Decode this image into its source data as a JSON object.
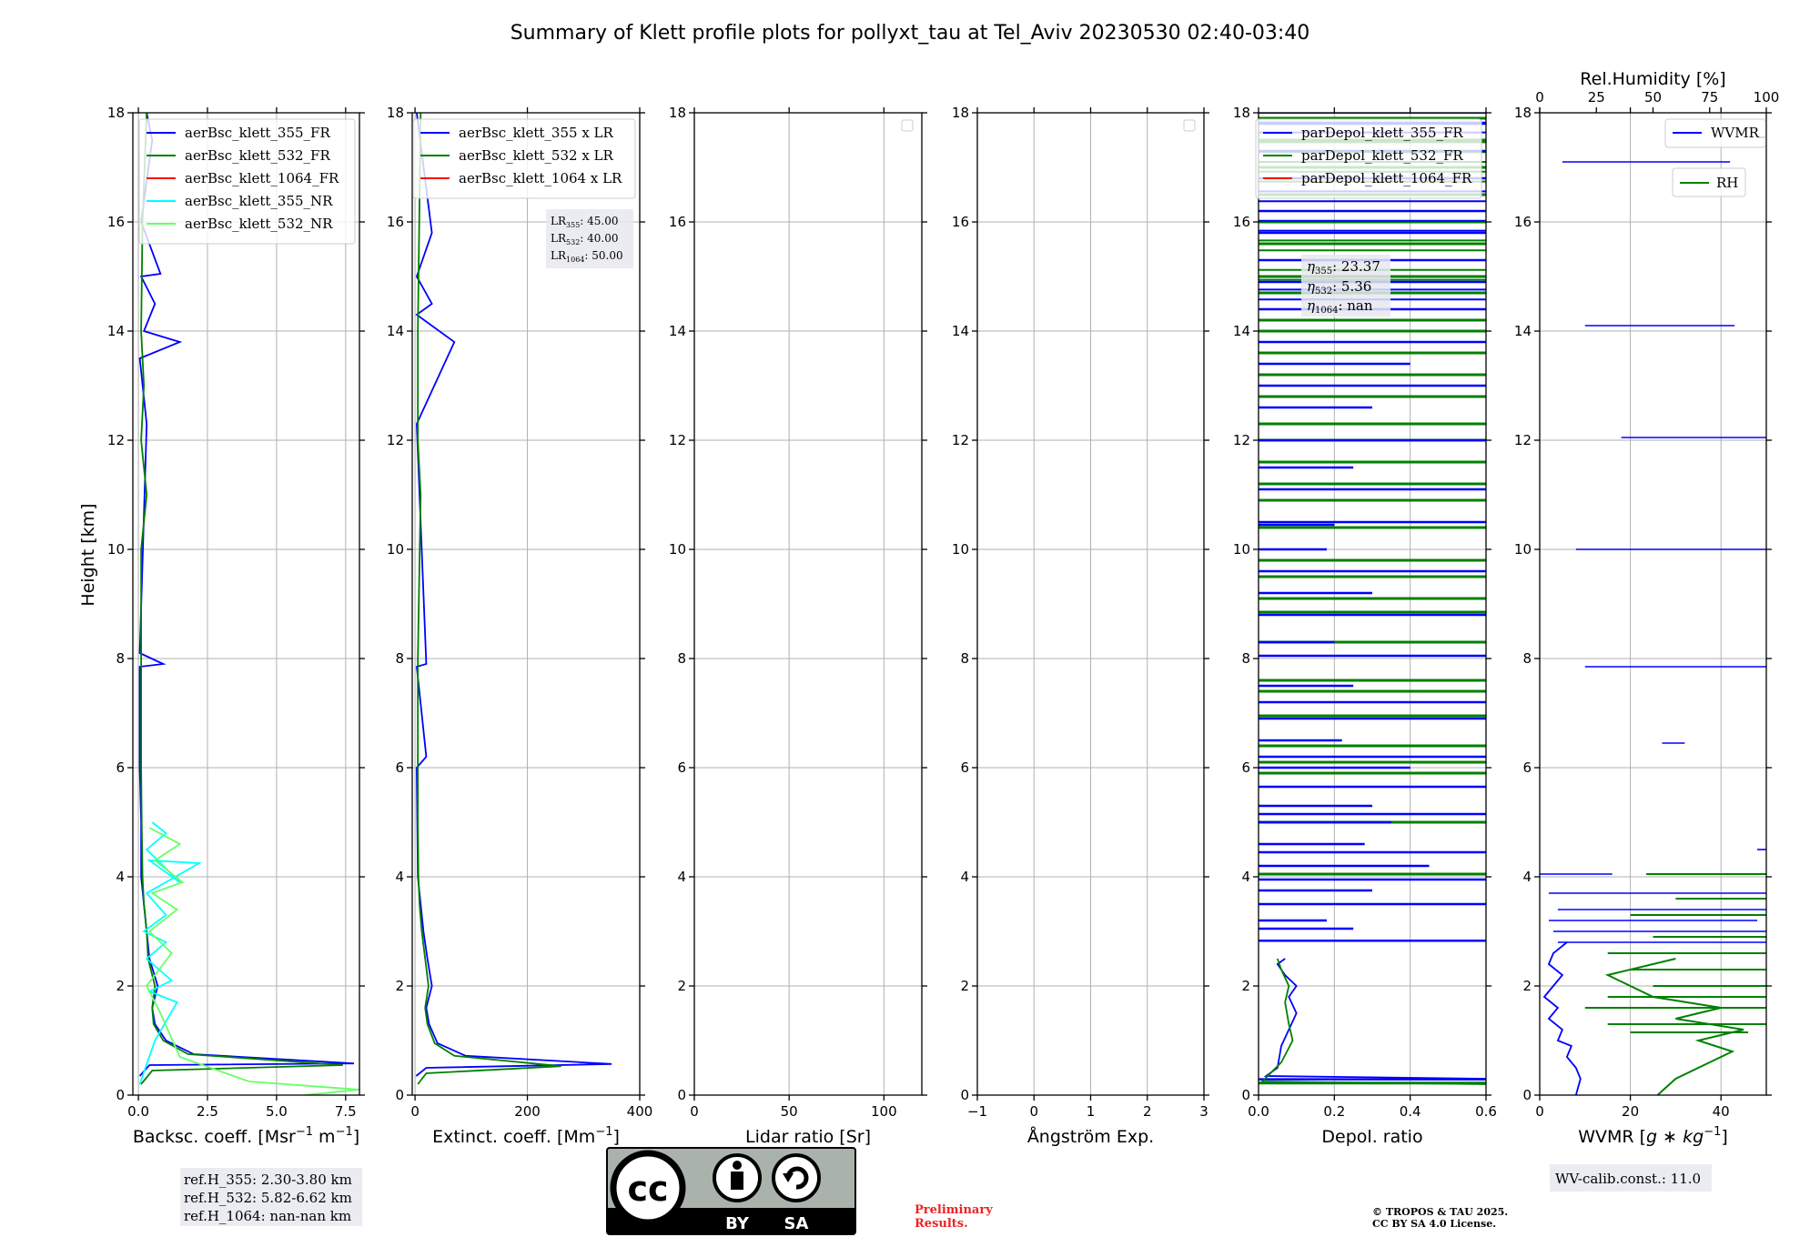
{
  "figure": {
    "title": "Summary of Klett profile plots for pollyxt_tau at Tel_Aviv 20230530 02:40-03:40",
    "y_label": "Height [km]",
    "ref_heights": [
      "ref.H_355: 2.30-3.80 km",
      "ref.H_532: 5.82-6.62 km",
      "ref.H_1064: nan-nan km"
    ],
    "lidar_ratios": {
      "lr355": {
        "name": "LR",
        "sub": "355",
        "value": ": 45.00"
      },
      "lr532": {
        "name": "LR",
        "sub": "532",
        "value": ": 40.00"
      },
      "lr1064": {
        "name": "LR",
        "sub": "1064",
        "value": ": 50.00"
      }
    },
    "eta_values": {
      "e355": {
        "sub": "355",
        "value": ": 23.37"
      },
      "e532": {
        "sub": "532",
        "value": ": 5.36"
      },
      "e1064": {
        "sub": "1064",
        "value": ": nan"
      }
    },
    "wv_calib": "WV-calib.const.: 11.0",
    "license_badge": {
      "by": "BY",
      "sa": "SA"
    },
    "preliminary": [
      "Preliminary",
      "Results."
    ],
    "copyright": [
      "© TROPOS & TAU 2025.",
      "CC BY SA 4.0 License."
    ],
    "colors": {
      "c355": "#0000ff",
      "c532": "#008000",
      "c1064": "#ff0000",
      "c355nr": "#00ffff",
      "c532nr": "#66ff66",
      "grid": "#b0b0b0"
    }
  },
  "chart_data": [
    {
      "type": "line",
      "panel": "backscatter",
      "xlabel": "Backsc. coeff. [Msr$^{-1}$ m$^{-1}$]",
      "xlabel_main": "Backsc. coeff. [Msr",
      "xlabel_sup1": "−1",
      "xlabel_mid": " m",
      "xlabel_sup2": "−1",
      "xlabel_end": "]",
      "xlim": [
        -0.2,
        8.0
      ],
      "ylim": [
        0,
        18
      ],
      "xticks": [
        0,
        2.5,
        5.0,
        7.5
      ],
      "xtick_labels": [
        "0.0",
        "2.5",
        "5.0",
        "7.5"
      ],
      "legend": "top-right",
      "series": [
        {
          "name": "aerBsc_klett_355_FR",
          "color": "#0000ff",
          "legend": true,
          "x": [
            0.05,
            0.4,
            7.8,
            2.0,
            1.0,
            0.6,
            0.5,
            0.7,
            0.4,
            0.3,
            0.2,
            0.1,
            0.1,
            0.05,
            0.05,
            0.05,
            0.9,
            0.05,
            0.3,
            0.05,
            1.5,
            0.2,
            0.6,
            0.1,
            0.8,
            0.1,
            0.5,
            0.3
          ],
          "y": [
            0.35,
            0.55,
            0.58,
            0.75,
            1.0,
            1.3,
            1.6,
            2.0,
            2.5,
            3.0,
            3.5,
            4.0,
            5.0,
            6.0,
            7.0,
            7.85,
            7.9,
            8.1,
            12.3,
            13.5,
            13.8,
            14.0,
            14.5,
            15.0,
            15.05,
            16.0,
            17.5,
            18.0
          ]
        },
        {
          "name": "aerBsc_klett_532_FR",
          "color": "#008000",
          "legend": true,
          "x": [
            0.1,
            0.5,
            7.4,
            1.8,
            0.9,
            0.55,
            0.5,
            0.6,
            0.35,
            0.3,
            0.2,
            0.15,
            0.12,
            0.1,
            0.1,
            0.1,
            0.3,
            0.1,
            0.2,
            0.1,
            0.15,
            0.3
          ],
          "y": [
            0.2,
            0.45,
            0.55,
            0.75,
            1.0,
            1.3,
            1.6,
            2.0,
            2.5,
            3.0,
            3.5,
            4.0,
            5.0,
            6.0,
            8.0,
            10.0,
            11.0,
            12.0,
            13.0,
            14.0,
            16.0,
            18.0
          ]
        },
        {
          "name": "aerBsc_klett_1064_FR",
          "color": "#ff0000",
          "legend": true,
          "x": [],
          "y": []
        },
        {
          "name": "aerBsc_klett_355_NR",
          "color": "#00ffff",
          "legend": true,
          "x": [
            0.05,
            0.6,
            1.4,
            0.4,
            1.2,
            0.3,
            1.0,
            0.2,
            1.0,
            0.3,
            2.2,
            0.4,
            1.5,
            0.3,
            1.0,
            0.5
          ],
          "y": [
            0.2,
            1.0,
            1.7,
            1.9,
            2.1,
            2.5,
            2.8,
            3.0,
            3.3,
            3.7,
            4.25,
            4.3,
            3.9,
            4.5,
            4.8,
            5.0
          ]
        },
        {
          "name": "aerBsc_klett_532_NR",
          "color": "#66ff66",
          "legend": true,
          "x": [
            6.0,
            8.0,
            4.0,
            1.5,
            0.8,
            0.3,
            1.2,
            0.4,
            1.4,
            0.5,
            1.6,
            0.6,
            1.5,
            0.4
          ],
          "y": [
            0.0,
            0.1,
            0.25,
            0.7,
            1.5,
            2.0,
            2.6,
            3.0,
            3.4,
            3.7,
            3.9,
            4.3,
            4.6,
            4.9
          ]
        }
      ]
    },
    {
      "type": "line",
      "panel": "extinction",
      "xlabel": "Extinct. coeff. [Mm$^{-1}$]",
      "xlabel_main": "Extinct. coeff. [Mm",
      "xlabel_sup1": "−1",
      "xlabel_end": "]",
      "xlim": [
        -5,
        400
      ],
      "ylim": [
        0,
        18
      ],
      "xticks": [
        0,
        200,
        400
      ],
      "xtick_labels": [
        "0",
        "200",
        "400"
      ],
      "legend": "top-right",
      "series": [
        {
          "name": "aerBsc_klett_355 x LR",
          "color": "#0000ff",
          "legend": true,
          "x": [
            2,
            20,
            350,
            90,
            40,
            25,
            20,
            30,
            22,
            15,
            10,
            5,
            4,
            3,
            20,
            3,
            20,
            3,
            70,
            3,
            30,
            3,
            30,
            3
          ],
          "y": [
            0.35,
            0.5,
            0.57,
            0.72,
            0.95,
            1.3,
            1.6,
            2.0,
            2.5,
            3.0,
            3.5,
            4.0,
            5.0,
            6.0,
            6.2,
            7.85,
            7.9,
            12.3,
            13.8,
            14.3,
            14.5,
            15.0,
            15.8,
            18.0
          ]
        },
        {
          "name": "aerBsc_klett_532 x LR",
          "color": "#008000",
          "legend": true,
          "x": [
            5,
            20,
            260,
            70,
            35,
            22,
            18,
            24,
            18,
            12,
            8,
            6,
            5,
            5,
            5,
            10,
            5,
            5,
            10
          ],
          "y": [
            0.2,
            0.4,
            0.53,
            0.72,
            0.95,
            1.3,
            1.6,
            2.0,
            2.5,
            3.0,
            3.5,
            4.0,
            5.0,
            6.0,
            8.0,
            11.0,
            12.0,
            14.0,
            18.0
          ]
        },
        {
          "name": "aerBsc_klett_1064 x LR",
          "color": "#ff0000",
          "legend": true,
          "x": [],
          "y": []
        }
      ]
    },
    {
      "type": "line",
      "panel": "lidar_ratio",
      "xlabel": "Lidar ratio [Sr]",
      "xlim": [
        0,
        120
      ],
      "ylim": [
        0,
        18
      ],
      "xticks": [
        0,
        50,
        100
      ],
      "xtick_labels": [
        "0",
        "50",
        "100"
      ],
      "legend": "top-right",
      "series": []
    },
    {
      "type": "line",
      "panel": "angstrom",
      "xlabel": "Ångström Exp.",
      "xlim": [
        -1,
        3
      ],
      "ylim": [
        0,
        18
      ],
      "xticks": [
        -1,
        0,
        1,
        2,
        3
      ],
      "xtick_labels": [
        "−1",
        "0",
        "1",
        "2",
        "3"
      ],
      "legend": "top-right",
      "series": []
    },
    {
      "type": "line",
      "panel": "depolarization",
      "xlabel": "Depol. ratio",
      "xlim": [
        0,
        0.6
      ],
      "ylim": [
        0,
        18
      ],
      "xticks": [
        0.0,
        0.2,
        0.4,
        0.6
      ],
      "xtick_labels": [
        "0.0",
        "0.2",
        "0.4",
        "0.6"
      ],
      "legend": "top-right",
      "series": [
        {
          "name": "parDepol_klett_355_FR",
          "color": "#0000ff",
          "legend": true,
          "x": [
            0.6,
            0.02,
            0.05,
            0.06,
            0.08,
            0.1,
            0.08,
            0.1,
            0.07,
            0.05,
            0.07
          ],
          "y": [
            0.3,
            0.35,
            0.5,
            0.9,
            1.2,
            1.5,
            1.8,
            2.0,
            2.2,
            2.4,
            2.5
          ]
        },
        {
          "name": "parDepol_klett_532_FR",
          "color": "#008000",
          "legend": true,
          "x": [
            0.6,
            0.01,
            0.06,
            0.09,
            0.08,
            0.07,
            0.08,
            0.06,
            0.05
          ],
          "y": [
            0.2,
            0.25,
            0.6,
            1.0,
            1.3,
            1.7,
            2.0,
            2.3,
            2.5
          ]
        },
        {
          "name": "parDepol_klett_1064_FR",
          "color": "#ff0000",
          "legend": true,
          "x": [],
          "y": []
        }
      ],
      "noise_355": [
        [
          0.29,
          0.6
        ],
        [
          2.83,
          0.6
        ],
        [
          3.05,
          0.25
        ],
        [
          3.2,
          0.18
        ],
        [
          3.5,
          0.6
        ],
        [
          3.75,
          0.3
        ],
        [
          3.95,
          0.6
        ],
        [
          4.2,
          0.45
        ],
        [
          4.45,
          0.6
        ],
        [
          4.6,
          0.28
        ],
        [
          5.0,
          0.35
        ],
        [
          5.15,
          0.6
        ],
        [
          5.3,
          0.3
        ],
        [
          5.65,
          0.6
        ],
        [
          6.0,
          0.4
        ],
        [
          6.2,
          0.6
        ],
        [
          6.5,
          0.22
        ],
        [
          6.9,
          0.6
        ],
        [
          7.2,
          0.6
        ],
        [
          7.5,
          0.25
        ],
        [
          8.05,
          0.6
        ],
        [
          8.3,
          0.2
        ],
        [
          8.8,
          0.6
        ],
        [
          9.2,
          0.3
        ],
        [
          9.6,
          0.6
        ],
        [
          10.0,
          0.18
        ],
        [
          10.5,
          0.6
        ],
        [
          10.45,
          0.2
        ],
        [
          11.1,
          0.6
        ],
        [
          11.5,
          0.25
        ],
        [
          12.0,
          0.6
        ],
        [
          12.6,
          0.3
        ],
        [
          13.0,
          0.6
        ],
        [
          13.4,
          0.4
        ],
        [
          13.8,
          0.6
        ],
        [
          14.4,
          0.6
        ],
        [
          14.9,
          0.6
        ],
        [
          15.3,
          0.6
        ],
        [
          15.8,
          0.6
        ],
        [
          16.2,
          0.6
        ],
        [
          16.8,
          0.6
        ],
        [
          17.3,
          0.6
        ],
        [
          17.8,
          0.6
        ]
      ],
      "noise_532": [
        [
          0.22,
          0.6
        ],
        [
          4.05,
          0.6
        ],
        [
          5.0,
          0.6
        ],
        [
          5.9,
          0.6
        ],
        [
          6.1,
          0.6
        ],
        [
          6.4,
          0.6
        ],
        [
          6.95,
          0.6
        ],
        [
          7.4,
          0.6
        ],
        [
          7.6,
          0.6
        ],
        [
          8.3,
          0.6
        ],
        [
          8.85,
          0.6
        ],
        [
          9.1,
          0.6
        ],
        [
          9.5,
          0.6
        ],
        [
          9.8,
          0.6
        ],
        [
          10.4,
          0.6
        ],
        [
          10.9,
          0.6
        ],
        [
          11.2,
          0.6
        ],
        [
          11.6,
          0.6
        ],
        [
          12.0,
          0.6
        ],
        [
          12.3,
          0.6
        ],
        [
          12.8,
          0.6
        ],
        [
          13.2,
          0.6
        ],
        [
          13.6,
          0.6
        ],
        [
          14.0,
          0.6
        ],
        [
          14.2,
          0.6
        ],
        [
          14.7,
          0.6
        ],
        [
          15.0,
          0.6
        ],
        [
          15.6,
          0.6
        ],
        [
          16.0,
          0.6
        ],
        [
          16.5,
          0.6
        ],
        [
          17.0,
          0.6
        ],
        [
          17.5,
          0.6
        ],
        [
          17.9,
          0.6
        ]
      ]
    },
    {
      "type": "line",
      "panel": "water_vapor",
      "xlabel": "WVMR [$g*kg^{-1}$]",
      "xlabel_main": "WVMR [",
      "xlabel_italic": "g",
      "xlabel_star": " ∗ ",
      "xlabel_italic2": "kg",
      "xlabel_sup1": "−1",
      "xlabel_end": "]",
      "xlim": [
        0,
        50
      ],
      "ylim": [
        0,
        18
      ],
      "xticks": [
        0,
        20,
        40
      ],
      "xtick_labels": [
        "0",
        "20",
        "40"
      ],
      "top_xlabel": "Rel.Humidity [%]",
      "top_xlim": [
        0,
        100
      ],
      "top_xticks": [
        0,
        25,
        50,
        75,
        100
      ],
      "top_xtick_labels": [
        "0",
        "25",
        "50",
        "75",
        "100"
      ],
      "legend": "top-right",
      "series": [
        {
          "name": "WVMR",
          "color": "#0000ff",
          "legend": true,
          "x": [
            8,
            9,
            8,
            6,
            7,
            4,
            5,
            2,
            4,
            1,
            3,
            5,
            2,
            3,
            6
          ],
          "y": [
            0.0,
            0.3,
            0.5,
            0.7,
            0.9,
            1.0,
            1.2,
            1.4,
            1.6,
            1.8,
            2.0,
            2.2,
            2.4,
            2.6,
            2.8
          ]
        },
        {
          "name": "RH",
          "color": "#008000",
          "legend": true,
          "x_rh": [
            52,
            60,
            75,
            85,
            70,
            90,
            60,
            80,
            50,
            40,
            30,
            60
          ],
          "y": [
            0.0,
            0.3,
            0.6,
            0.8,
            1.0,
            1.2,
            1.4,
            1.6,
            1.8,
            2.0,
            2.2,
            2.5
          ]
        }
      ],
      "wv_segments": [
        [
          17.1,
          5,
          42
        ],
        [
          14.1,
          10,
          43
        ],
        [
          12.05,
          18,
          50
        ],
        [
          10.0,
          8,
          50
        ],
        [
          7.85,
          10,
          50
        ],
        [
          6.45,
          27,
          32
        ],
        [
          4.5,
          48,
          50
        ],
        [
          4.05,
          0,
          16
        ],
        [
          3.7,
          2,
          50
        ],
        [
          3.4,
          4,
          50
        ],
        [
          3.2,
          2,
          48
        ],
        [
          3.0,
          3,
          50
        ],
        [
          2.8,
          4,
          50
        ],
        [
          17.55,
          48,
          50
        ]
      ],
      "rh_segments": [
        [
          4.05,
          47,
          100
        ],
        [
          3.6,
          60,
          100
        ],
        [
          3.3,
          40,
          100
        ],
        [
          2.9,
          50,
          100
        ],
        [
          2.6,
          30,
          100
        ],
        [
          2.3,
          40,
          100
        ],
        [
          2.0,
          50,
          100
        ],
        [
          1.8,
          30,
          100
        ],
        [
          1.6,
          20,
          100
        ],
        [
          1.3,
          30,
          100
        ],
        [
          1.15,
          40,
          92
        ]
      ]
    }
  ]
}
